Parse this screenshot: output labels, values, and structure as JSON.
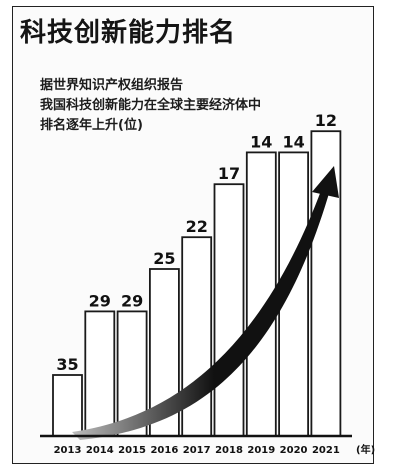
{
  "chart_data": {
    "type": "bar",
    "title": "科技创新能力排名",
    "subtitle_lines": [
      "据世界知识产权组织报告",
      "我国科技创新能力在全球主要经济体中",
      "排名逐年上升(位)"
    ],
    "categories": [
      "2013",
      "2014",
      "2015",
      "2016",
      "2017",
      "2018",
      "2019",
      "2020",
      "2021"
    ],
    "values": [
      35,
      29,
      29,
      25,
      22,
      17,
      14,
      14,
      12
    ],
    "x_unit": "(年)",
    "colors": {
      "bar_fill": "#ffffff",
      "bar_stroke": "#1a1a1a",
      "arrow_dark": "#111111",
      "arrow_light": "#bdbdbd"
    }
  }
}
